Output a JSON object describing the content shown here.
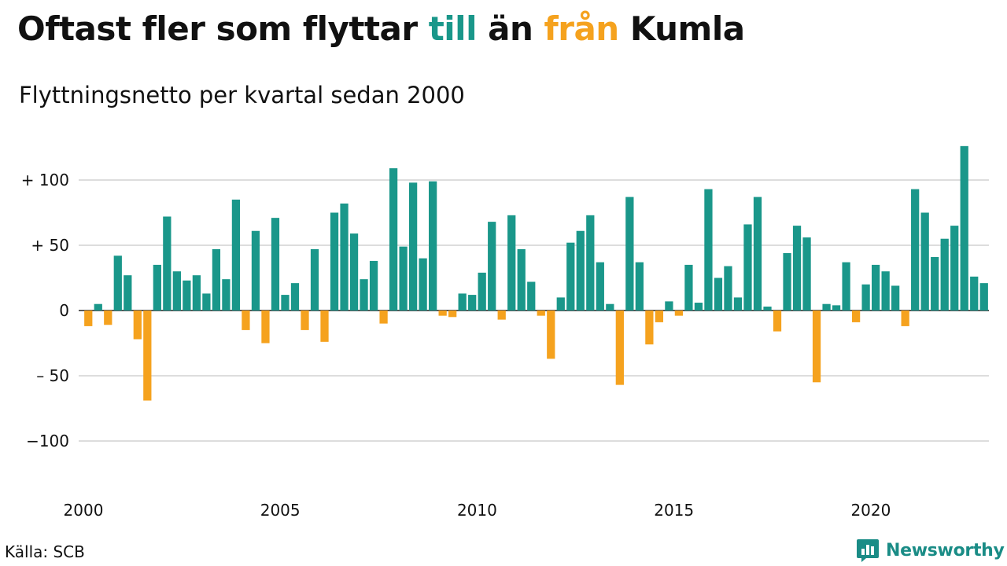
{
  "header": {
    "title_parts": [
      "Oftast fler som flyttar ",
      "till",
      " än ",
      "från",
      " Kumla"
    ],
    "subtitle": "Flyttningsnetto per kvartal sedan 2000"
  },
  "footer": {
    "source": "Källa: SCB",
    "brand": "Newsworthy",
    "brand_icon": "bar-chart-speech-bubble-icon"
  },
  "colors": {
    "positive": "#1a978a",
    "negative": "#f5a21e",
    "grid": "#dddddd",
    "brand": "#1a8c86"
  },
  "chart_data": {
    "type": "bar",
    "title": "Oftast fler som flyttar till än från Kumla",
    "subtitle": "Flyttningsnetto per kvartal sedan 2000",
    "ylim": [
      -120,
      130
    ],
    "y_ticks": [
      {
        "value": 100,
        "label": "+ 100"
      },
      {
        "value": 50,
        "label": "+  50"
      },
      {
        "value": 0,
        "label": "0"
      },
      {
        "value": -50,
        "label": "– 50"
      },
      {
        "value": -100,
        "label": "−100"
      }
    ],
    "x_ticks": [
      {
        "year": 2000,
        "label": "2000"
      },
      {
        "year": 2005,
        "label": "2005"
      },
      {
        "year": 2010,
        "label": "2010"
      },
      {
        "year": 2015,
        "label": "2015"
      },
      {
        "year": 2020,
        "label": "2020"
      }
    ],
    "grid": true,
    "first_quarter": "2000 Q1",
    "values": [
      -12,
      5,
      -11,
      42,
      27,
      -22,
      -69,
      35,
      72,
      30,
      23,
      27,
      13,
      47,
      24,
      85,
      -15,
      61,
      -25,
      71,
      12,
      21,
      -15,
      47,
      -24,
      75,
      82,
      59,
      24,
      38,
      -10,
      109,
      49,
      98,
      40,
      99,
      -4,
      -5,
      13,
      12,
      29,
      68,
      -7,
      73,
      47,
      22,
      -4,
      -37,
      10,
      52,
      61,
      73,
      37,
      5,
      -57,
      87,
      37,
      -26,
      -9,
      7,
      -4,
      35,
      6,
      93,
      25,
      34,
      10,
      66,
      87,
      3,
      -16,
      44,
      65,
      56,
      -55,
      5,
      4,
      37,
      -9,
      20,
      35,
      30,
      19,
      -12,
      93,
      75,
      41,
      55,
      65,
      126,
      26,
      21
    ]
  }
}
